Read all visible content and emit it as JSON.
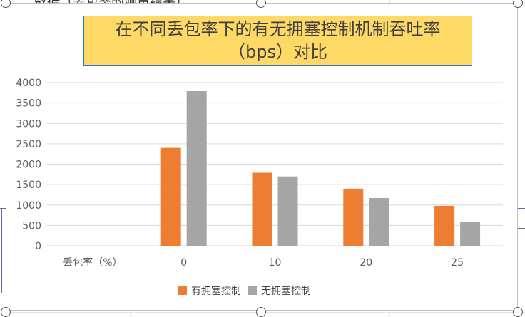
{
  "chart_data": {
    "type": "bar",
    "title_lines": [
      "在不同丢包率下的有无拥塞控制机制吞吐率",
      "（bps）对比"
    ],
    "xlabel": "丢包率（%）",
    "categories": [
      "0",
      "10",
      "20",
      "25"
    ],
    "series": [
      {
        "name": "有拥塞控制",
        "color": "#ed7d31",
        "values": [
          2400,
          1790,
          1400,
          980
        ]
      },
      {
        "name": "无拥塞控制",
        "color": "#a5a5a5",
        "values": [
          3790,
          1700,
          1170,
          580
        ]
      }
    ],
    "ylim": [
      0,
      4000
    ],
    "yticks": [
      "0",
      "500",
      "1000",
      "1500",
      "2000",
      "2500",
      "3000",
      "3500",
      "4000"
    ],
    "grid": true,
    "legend_position": "bottom"
  },
  "background": {
    "cut_text": "数据（丢包率的测量结果）"
  }
}
